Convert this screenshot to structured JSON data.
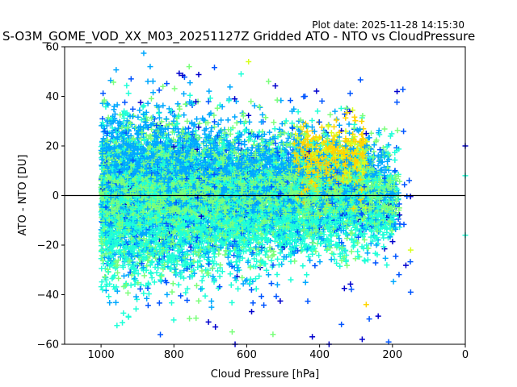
{
  "plot_date": "Plot date: 2025-11-28 14:15:30",
  "chart_data": {
    "type": "scatter",
    "marker": "plus",
    "title": "S-O3M_GOME_VOD_XX_M03_20251127Z Gridded ATO - NTO vs CloudPressure",
    "xlabel": "Cloud Pressure [hPa]",
    "ylabel": "ATO - NTO [DU]",
    "xlim": [
      1100,
      0
    ],
    "ylim": [
      -60,
      60
    ],
    "x_inverted": true,
    "xticks": [
      1000,
      800,
      600,
      400,
      200,
      0
    ],
    "yticks": [
      -60,
      -40,
      -20,
      0,
      20,
      40,
      60
    ],
    "reference_line": {
      "y": 0,
      "color": "#000000"
    },
    "grid": false,
    "legend": "none",
    "palette": [
      "#0000cd",
      "#0055ff",
      "#00a8ff",
      "#1fffd8",
      "#7bff7b",
      "#d8ff1f",
      "#ffd500"
    ],
    "approx_point_count": 12000,
    "clusters": [
      {
        "name": "main cloud",
        "x_range": [
          1000,
          180
        ],
        "y_center": 0,
        "y_spread": 14,
        "dominant_colors": [
          "#00a8ff",
          "#1fffd8",
          "#7bff7b"
        ]
      },
      {
        "name": "high cloud band",
        "x_range": [
          470,
          270
        ],
        "y_center": 12,
        "y_spread": 8,
        "dominant_colors": [
          "#ffd500",
          "#d8ff1f"
        ]
      },
      {
        "name": "outliers",
        "x_range": [
          1000,
          140
        ],
        "y_range": [
          -60,
          55
        ],
        "dominant_colors": [
          "#0000cd",
          "#0055ff"
        ]
      }
    ],
    "sample_points": [
      {
        "x": 758,
        "y": 52,
        "color": "#7bff7b"
      },
      {
        "x": 595,
        "y": 54,
        "color": "#d8ff1f"
      },
      {
        "x": 540,
        "y": 46,
        "color": "#7bff7b"
      },
      {
        "x": 830,
        "y": 44,
        "color": "#7bff7b"
      },
      {
        "x": 440,
        "y": 40,
        "color": "#0055ff"
      },
      {
        "x": 633,
        "y": 39,
        "color": "#0000cd"
      },
      {
        "x": 272,
        "y": 25,
        "color": "#0000cd"
      },
      {
        "x": 0,
        "y": 20,
        "color": "#0000cd"
      },
      {
        "x": 0,
        "y": 8,
        "color": "#1fffd8"
      },
      {
        "x": 0,
        "y": -16,
        "color": "#1fffd8"
      },
      {
        "x": 150,
        "y": -22,
        "color": "#d8ff1f"
      },
      {
        "x": 150,
        "y": -39,
        "color": "#0055ff"
      },
      {
        "x": 272,
        "y": -44,
        "color": "#ffd500"
      },
      {
        "x": 283,
        "y": -58,
        "color": "#0000cd"
      },
      {
        "x": 420,
        "y": -57,
        "color": "#0000cd"
      },
      {
        "x": 528,
        "y": -56,
        "color": "#7bff7b"
      },
      {
        "x": 632,
        "y": -60,
        "color": "#0000cd"
      },
      {
        "x": 640,
        "y": -55,
        "color": "#7bff7b"
      },
      {
        "x": 705,
        "y": -51,
        "color": "#0000cd"
      },
      {
        "x": 686,
        "y": -53,
        "color": "#0000cd"
      },
      {
        "x": 374,
        "y": -60,
        "color": "#0000cd"
      },
      {
        "x": 340,
        "y": -52,
        "color": "#0055ff"
      }
    ]
  }
}
